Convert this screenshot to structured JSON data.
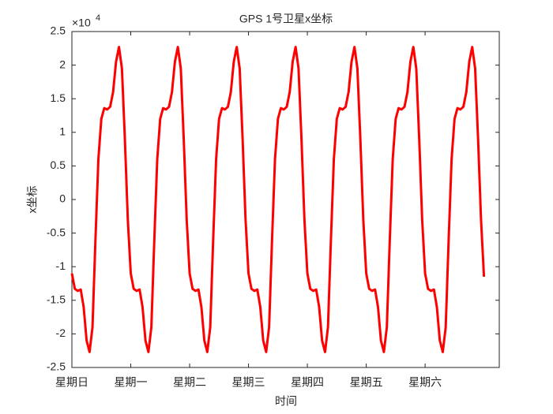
{
  "chart_data": {
    "type": "line",
    "title": "GPS 1号卫星x坐标",
    "x_label": "时间",
    "y_label": "x坐标",
    "y_multiplier": {
      "base": "×10",
      "exponent": "4"
    },
    "xlim": [
      0,
      7.26
    ],
    "xticks": [
      {
        "value": 0,
        "label": "星期日"
      },
      {
        "value": 1,
        "label": "星期一"
      },
      {
        "value": 2,
        "label": "星期二"
      },
      {
        "value": 3,
        "label": "星期三"
      },
      {
        "value": 4,
        "label": "星期四"
      },
      {
        "value": 5,
        "label": "星期五"
      },
      {
        "value": 6,
        "label": "星期六"
      }
    ],
    "ylim": [
      -2.5,
      2.5
    ],
    "yticks": [
      -2.5,
      -2,
      -1.5,
      -1,
      -0.5,
      0,
      0.5,
      1,
      1.5,
      2,
      2.5
    ],
    "grid": false,
    "x": [
      0,
      0.05,
      0.1,
      0.15,
      0.2,
      0.25,
      0.3,
      0.35,
      0.4,
      0.45,
      0.5,
      0.55,
      0.6,
      0.65,
      0.7,
      0.75,
      0.8,
      0.85,
      0.9,
      0.95,
      1,
      1.05,
      1.1,
      1.15,
      1.2,
      1.25,
      1.3,
      1.35,
      1.4,
      1.45,
      1.5,
      1.55,
      1.6,
      1.65,
      1.7,
      1.75,
      1.8,
      1.85,
      1.9,
      1.95,
      2,
      2.05,
      2.1,
      2.15,
      2.2,
      2.25,
      2.3,
      2.35,
      2.4,
      2.45,
      2.5,
      2.55,
      2.6,
      2.65,
      2.7,
      2.75,
      2.8,
      2.85,
      2.9,
      2.95,
      3,
      3.05,
      3.1,
      3.15,
      3.2,
      3.25,
      3.3,
      3.35,
      3.4,
      3.45,
      3.5,
      3.55,
      3.6,
      3.65,
      3.7,
      3.75,
      3.8,
      3.85,
      3.9,
      3.95,
      4,
      4.05,
      4.1,
      4.15,
      4.2,
      4.25,
      4.3,
      4.35,
      4.4,
      4.45,
      4.5,
      4.55,
      4.6,
      4.65,
      4.7,
      4.75,
      4.8,
      4.85,
      4.9,
      4.95,
      5,
      5.05,
      5.1,
      5.15,
      5.2,
      5.25,
      5.3,
      5.35,
      5.4,
      5.45,
      5.5,
      5.55,
      5.6,
      5.65,
      5.7,
      5.75,
      5.8,
      5.85,
      5.9,
      5.95,
      6,
      6.05,
      6.1,
      6.15,
      6.2,
      6.25,
      6.3,
      6.35,
      6.4,
      6.45,
      6.5,
      6.55,
      6.6,
      6.65,
      6.7,
      6.75,
      6.8,
      6.85,
      6.9,
      6.95,
      7
    ],
    "series": [
      {
        "color": "#ff0000",
        "values": [
          -1.1,
          -1.33,
          -1.36,
          -1.34,
          -1.6,
          -2.1,
          -2.27,
          -1.9,
          -0.6,
          0.6,
          1.2,
          1.36,
          1.34,
          1.38,
          1.6,
          2.05,
          2.27,
          1.95,
          0.9,
          -0.3,
          -1.1,
          -1.33,
          -1.36,
          -1.34,
          -1.6,
          -2.1,
          -2.27,
          -1.9,
          -0.6,
          0.6,
          1.2,
          1.36,
          1.34,
          1.38,
          1.6,
          2.05,
          2.27,
          1.95,
          0.9,
          -0.3,
          -1.1,
          -1.33,
          -1.36,
          -1.34,
          -1.6,
          -2.1,
          -2.27,
          -1.9,
          -0.6,
          0.6,
          1.2,
          1.36,
          1.34,
          1.38,
          1.6,
          2.05,
          2.27,
          1.95,
          0.9,
          -0.3,
          -1.1,
          -1.33,
          -1.36,
          -1.34,
          -1.6,
          -2.1,
          -2.27,
          -1.9,
          -0.6,
          0.6,
          1.2,
          1.36,
          1.34,
          1.38,
          1.6,
          2.05,
          2.27,
          1.95,
          0.9,
          -0.3,
          -1.1,
          -1.33,
          -1.36,
          -1.34,
          -1.6,
          -2.1,
          -2.27,
          -1.9,
          -0.6,
          0.6,
          1.2,
          1.36,
          1.34,
          1.38,
          1.6,
          2.05,
          2.27,
          1.95,
          0.9,
          -0.3,
          -1.1,
          -1.33,
          -1.36,
          -1.34,
          -1.6,
          -2.1,
          -2.27,
          -1.9,
          -0.6,
          0.6,
          1.2,
          1.36,
          1.34,
          1.38,
          1.6,
          2.05,
          2.27,
          1.95,
          0.9,
          -0.3,
          -1.1,
          -1.33,
          -1.36,
          -1.34,
          -1.6,
          -2.1,
          -2.27,
          -1.9,
          -0.6,
          0.6,
          1.2,
          1.36,
          1.34,
          1.38,
          1.6,
          2.05,
          2.27,
          1.95,
          0.9,
          -0.3,
          -1.15
        ]
      }
    ]
  }
}
